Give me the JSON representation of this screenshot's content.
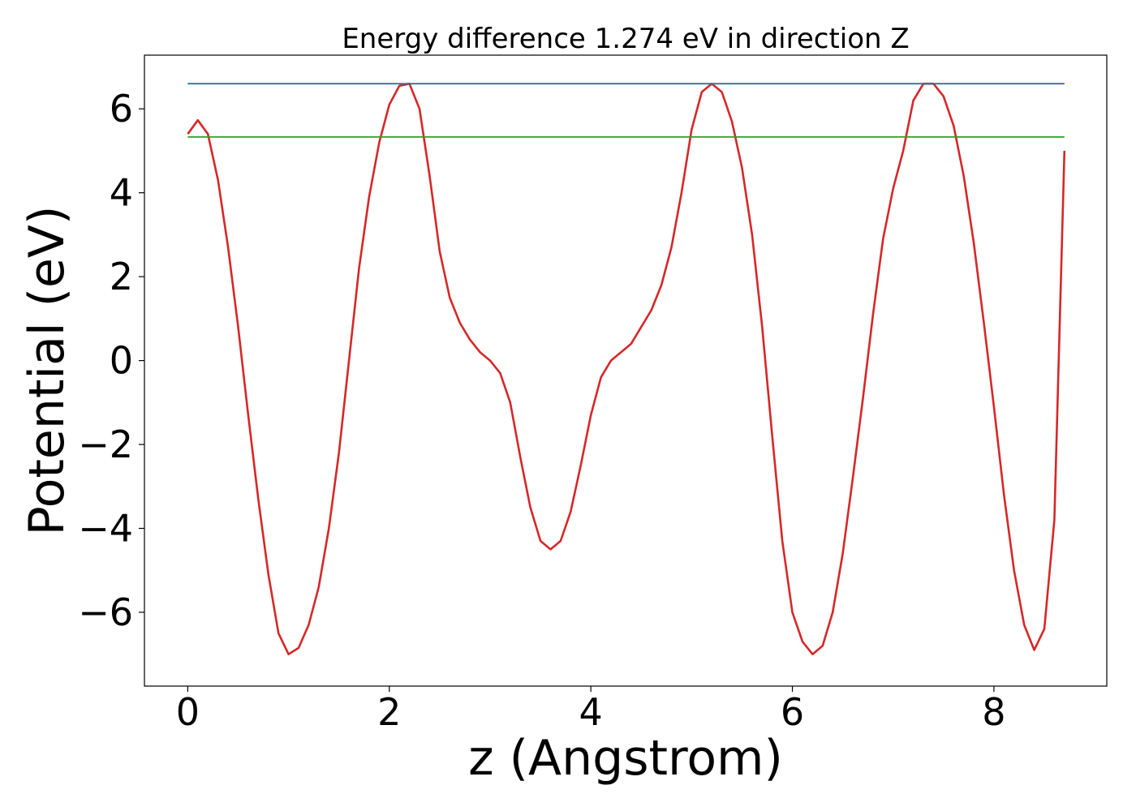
{
  "chart_data": {
    "type": "line",
    "title": "Energy difference 1.274 eV in direction Z",
    "xlabel": "z (Angstrom)",
    "ylabel": "Potential (eV)",
    "xlim": [
      -0.43,
      9.12
    ],
    "ylim": [
      -7.76,
      7.28
    ],
    "xticks": [
      0,
      2,
      4,
      6,
      8
    ],
    "xtick_labels": [
      "0",
      "2",
      "4",
      "6",
      "8"
    ],
    "yticks": [
      -6,
      -4,
      -2,
      0,
      2,
      4,
      6
    ],
    "ytick_labels": [
      "−6",
      "−4",
      "−2",
      "0",
      "2",
      "4",
      "6"
    ],
    "grid": false,
    "series": [
      {
        "color": "#d62728",
        "x": [
          0.0,
          0.1,
          0.2,
          0.3,
          0.4,
          0.5,
          0.6,
          0.7,
          0.8,
          0.9,
          1.0,
          1.1,
          1.2,
          1.3,
          1.4,
          1.5,
          1.6,
          1.7,
          1.8,
          1.9,
          2.0,
          2.1,
          2.2,
          2.3,
          2.4,
          2.5,
          2.6,
          2.7,
          2.8,
          2.9,
          3.0,
          3.1,
          3.2,
          3.3,
          3.4,
          3.5,
          3.6,
          3.7,
          3.8,
          3.9,
          4.0,
          4.1,
          4.2,
          4.3,
          4.4,
          4.5,
          4.6,
          4.7,
          4.8,
          4.9,
          5.0,
          5.1,
          5.2,
          5.3,
          5.4,
          5.5,
          5.6,
          5.7,
          5.8,
          5.9,
          6.0,
          6.1,
          6.2,
          6.3,
          6.4,
          6.5,
          6.6,
          6.7,
          6.8,
          6.9,
          7.0,
          7.1,
          7.2,
          7.3,
          7.4,
          7.5,
          7.6,
          7.7,
          7.8,
          7.9,
          8.0,
          8.1,
          8.2,
          8.3,
          8.4,
          8.5,
          8.6,
          8.7
        ],
        "values": [
          5.4,
          5.73,
          5.4,
          4.3,
          2.7,
          0.8,
          -1.3,
          -3.3,
          -5.1,
          -6.5,
          -7.0,
          -6.85,
          -6.3,
          -5.4,
          -4.0,
          -2.2,
          0.0,
          2.2,
          3.9,
          5.2,
          6.1,
          6.55,
          6.6,
          6.0,
          4.4,
          2.6,
          1.5,
          0.9,
          0.5,
          0.2,
          0.0,
          -0.3,
          -1.0,
          -2.3,
          -3.5,
          -4.3,
          -4.5,
          -4.3,
          -3.6,
          -2.5,
          -1.3,
          -0.4,
          0.0,
          0.2,
          0.4,
          0.8,
          1.2,
          1.8,
          2.7,
          4.0,
          5.5,
          6.4,
          6.6,
          6.4,
          5.7,
          4.6,
          3.0,
          0.8,
          -1.8,
          -4.3,
          -6.0,
          -6.7,
          -7.0,
          -6.8,
          -6.0,
          -4.6,
          -2.8,
          -0.9,
          1.1,
          2.9,
          4.1,
          5.0,
          6.2,
          6.6,
          6.6,
          6.3,
          5.6,
          4.4,
          2.8,
          0.9,
          -1.1,
          -3.2,
          -5.0,
          -6.3,
          -6.9,
          -6.4,
          -3.8,
          5.0
        ]
      },
      {
        "color": "#1f77b4",
        "x": [
          0.0,
          8.7
        ],
        "values": [
          6.6,
          6.6
        ]
      },
      {
        "color": "#2ca02c",
        "x": [
          0.0,
          8.7
        ],
        "values": [
          5.33,
          5.33
        ]
      }
    ]
  }
}
